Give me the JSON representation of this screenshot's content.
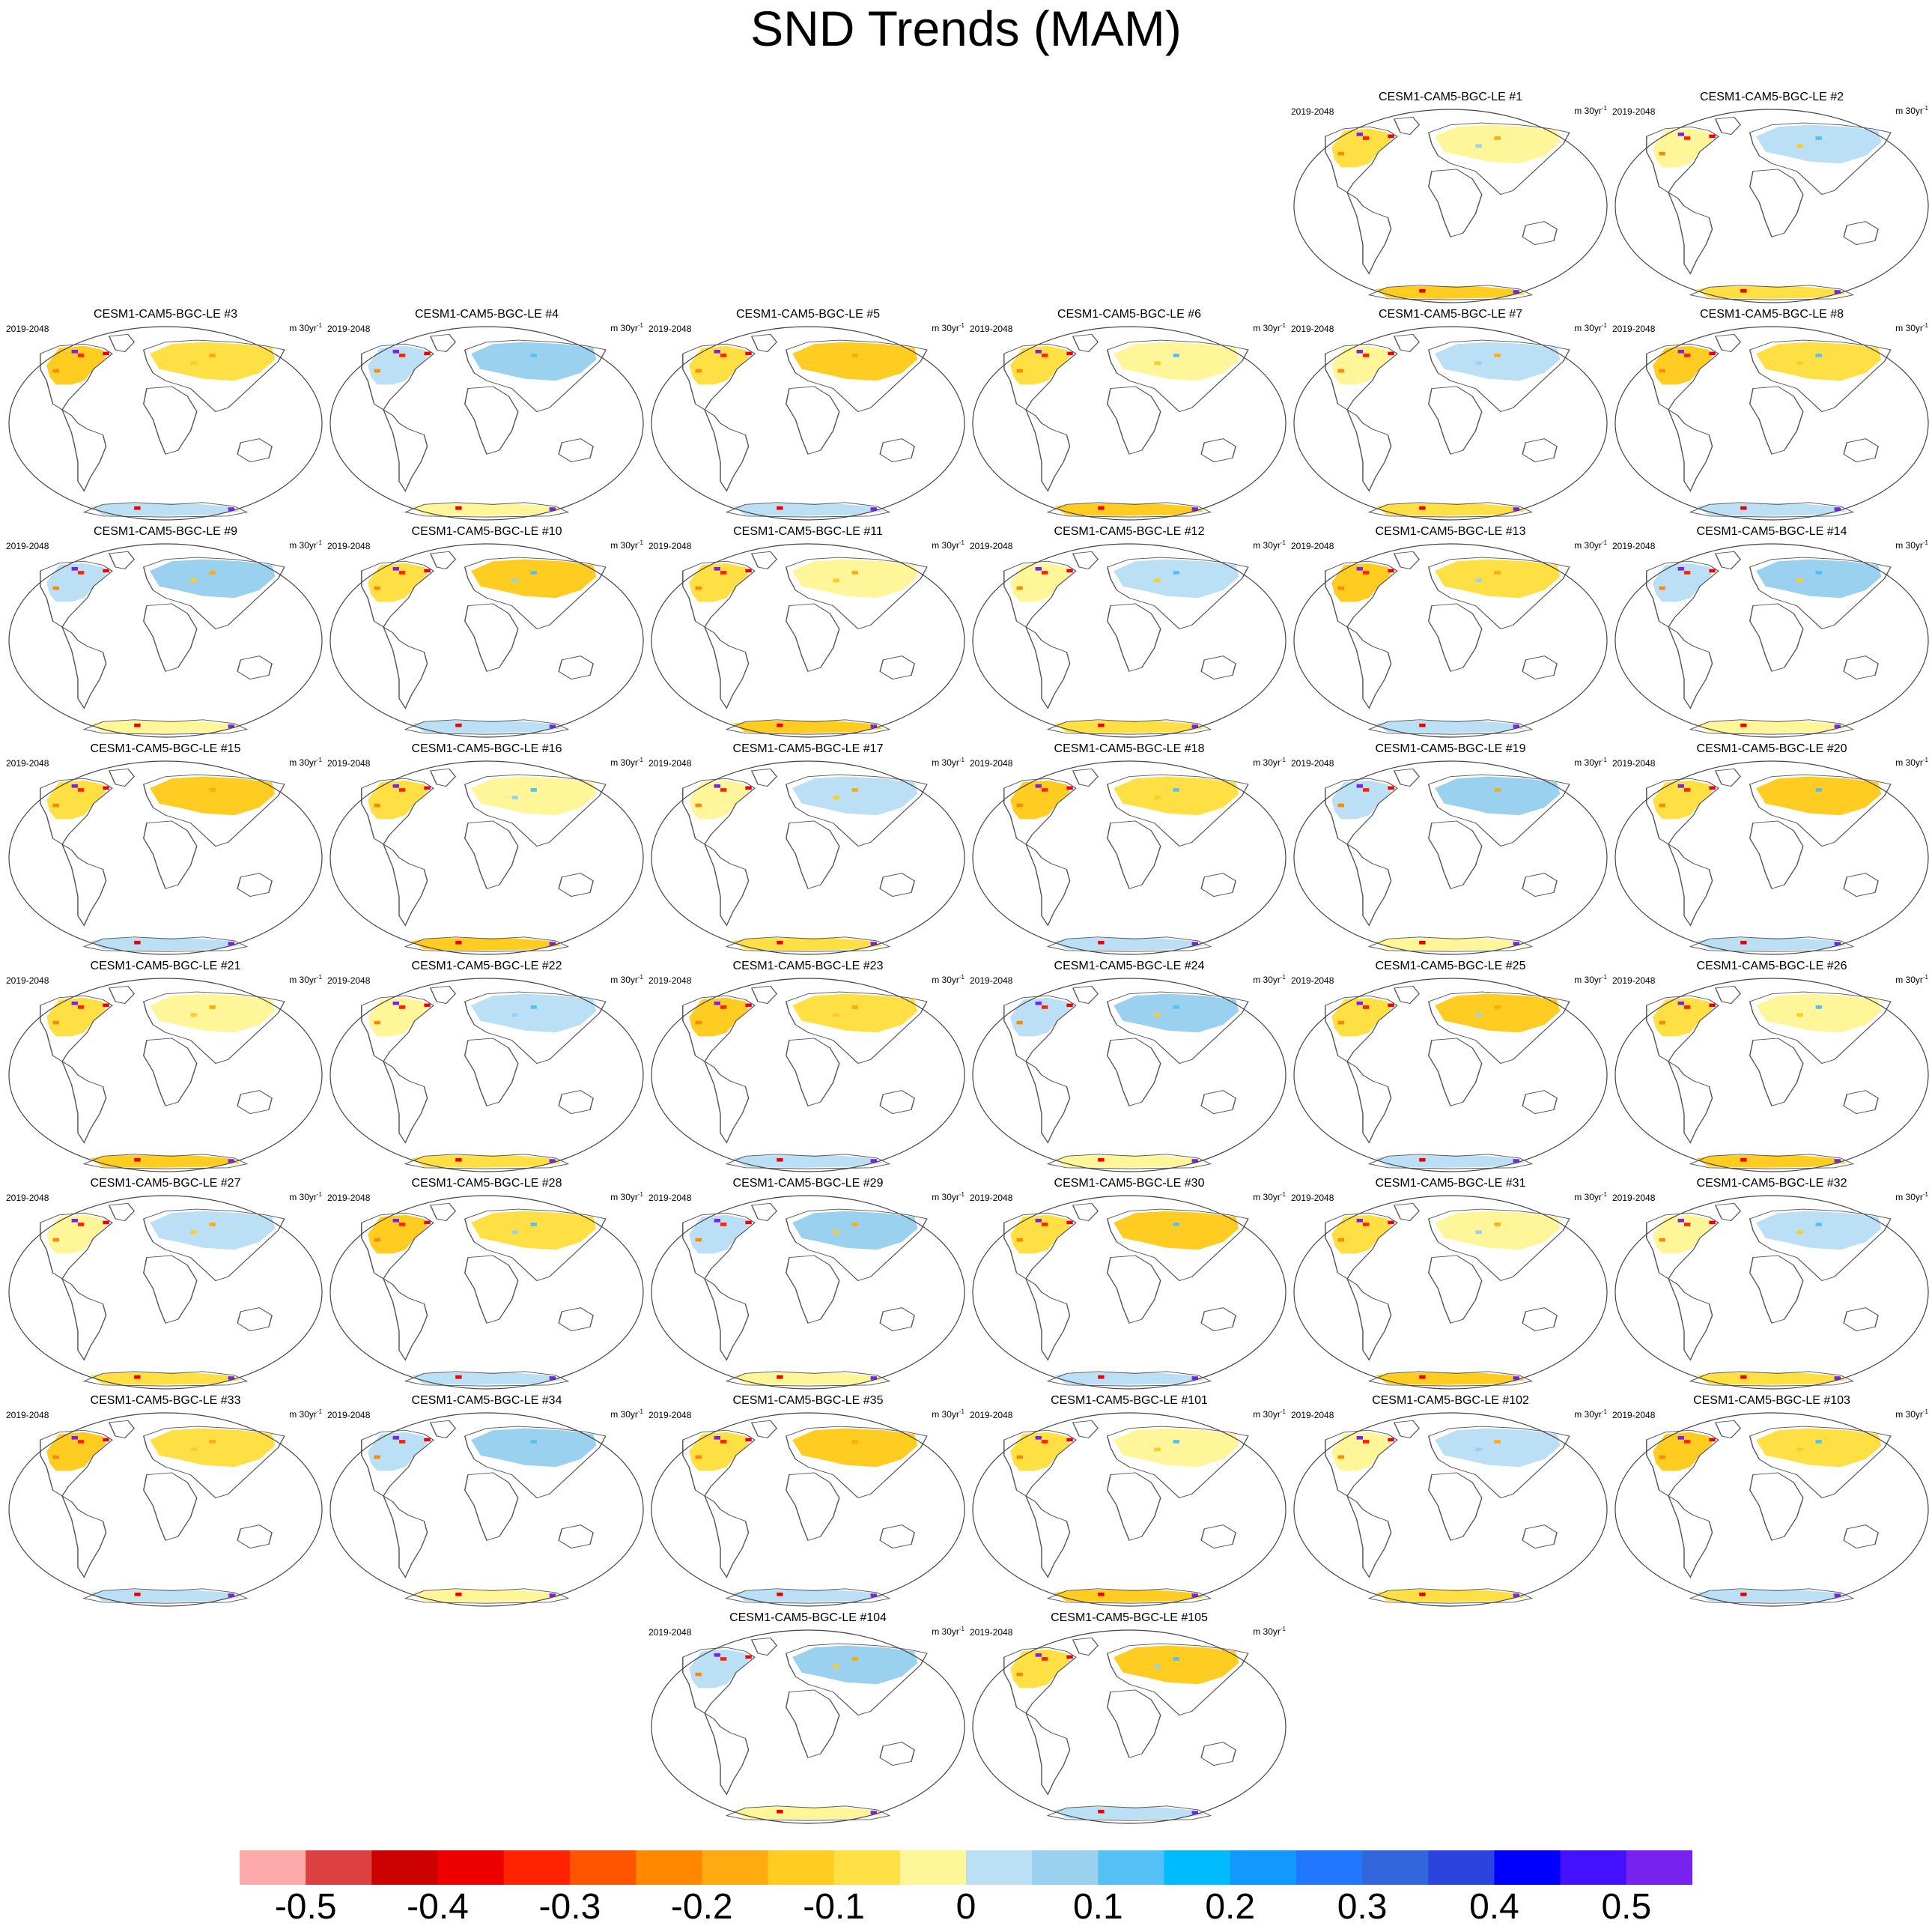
{
  "title": "SND Trends (MAM)",
  "panel_left_label": "2019-2048",
  "panel_units_label": "m 30yr",
  "panel_units_exp": "-1",
  "panels": [
    "CESM1-CAM5-BGC-LE #1",
    "CESM1-CAM5-BGC-LE #2",
    "CESM1-CAM5-BGC-LE #3",
    "CESM1-CAM5-BGC-LE #4",
    "CESM1-CAM5-BGC-LE #5",
    "CESM1-CAM5-BGC-LE #6",
    "CESM1-CAM5-BGC-LE #7",
    "CESM1-CAM5-BGC-LE #8",
    "CESM1-CAM5-BGC-LE #9",
    "CESM1-CAM5-BGC-LE #10",
    "CESM1-CAM5-BGC-LE #11",
    "CESM1-CAM5-BGC-LE #12",
    "CESM1-CAM5-BGC-LE #13",
    "CESM1-CAM5-BGC-LE #14",
    "CESM1-CAM5-BGC-LE #15",
    "CESM1-CAM5-BGC-LE #16",
    "CESM1-CAM5-BGC-LE #17",
    "CESM1-CAM5-BGC-LE #18",
    "CESM1-CAM5-BGC-LE #19",
    "CESM1-CAM5-BGC-LE #20",
    "CESM1-CAM5-BGC-LE #21",
    "CESM1-CAM5-BGC-LE #22",
    "CESM1-CAM5-BGC-LE #23",
    "CESM1-CAM5-BGC-LE #24",
    "CESM1-CAM5-BGC-LE #25",
    "CESM1-CAM5-BGC-LE #26",
    "CESM1-CAM5-BGC-LE #27",
    "CESM1-CAM5-BGC-LE #28",
    "CESM1-CAM5-BGC-LE #29",
    "CESM1-CAM5-BGC-LE #30",
    "CESM1-CAM5-BGC-LE #31",
    "CESM1-CAM5-BGC-LE #32",
    "CESM1-CAM5-BGC-LE #33",
    "CESM1-CAM5-BGC-LE #34",
    "CESM1-CAM5-BGC-LE #35",
    "CESM1-CAM5-BGC-LE #101",
    "CESM1-CAM5-BGC-LE #102",
    "CESM1-CAM5-BGC-LE #103",
    "CESM1-CAM5-BGC-LE #104",
    "CESM1-CAM5-BGC-LE #105"
  ],
  "colorbar": {
    "colors": [
      "#ffaaaa",
      "#dd4040",
      "#cc0000",
      "#ee0000",
      "#ff2200",
      "#ff5500",
      "#ff8800",
      "#ffaa11",
      "#ffcc22",
      "#ffe044",
      "#fff599",
      "#bbe0f5",
      "#99d1ee",
      "#55c0f5",
      "#00bbff",
      "#1199ff",
      "#2277ff",
      "#3366dd",
      "#2a44dd",
      "#0000ff",
      "#4411ff",
      "#7722ee"
    ],
    "tick_labels": [
      "-0.5",
      "-0.4",
      "-0.3",
      "-0.2",
      "-0.1",
      "0",
      "0.1",
      "0.2",
      "0.3",
      "0.4",
      "0.5"
    ]
  },
  "chart_data": {
    "type": "heatmap",
    "title": "SND Trends (MAM)",
    "period": "2019-2048",
    "units": "m 30yr-1",
    "members": [
      "#1",
      "#2",
      "#3",
      "#4",
      "#5",
      "#6",
      "#7",
      "#8",
      "#9",
      "#10",
      "#11",
      "#12",
      "#13",
      "#14",
      "#15",
      "#16",
      "#17",
      "#18",
      "#19",
      "#20",
      "#21",
      "#22",
      "#23",
      "#24",
      "#25",
      "#26",
      "#27",
      "#28",
      "#29",
      "#30",
      "#31",
      "#32",
      "#33",
      "#34",
      "#35",
      "#101",
      "#102",
      "#103",
      "#104",
      "#105"
    ],
    "colorbar_levels": [
      -0.5,
      -0.45,
      -0.4,
      -0.35,
      -0.3,
      -0.25,
      -0.2,
      -0.15,
      -0.1,
      -0.05,
      0,
      0.05,
      0.1,
      0.15,
      0.2,
      0.25,
      0.3,
      0.35,
      0.4,
      0.45,
      0.5
    ]
  }
}
